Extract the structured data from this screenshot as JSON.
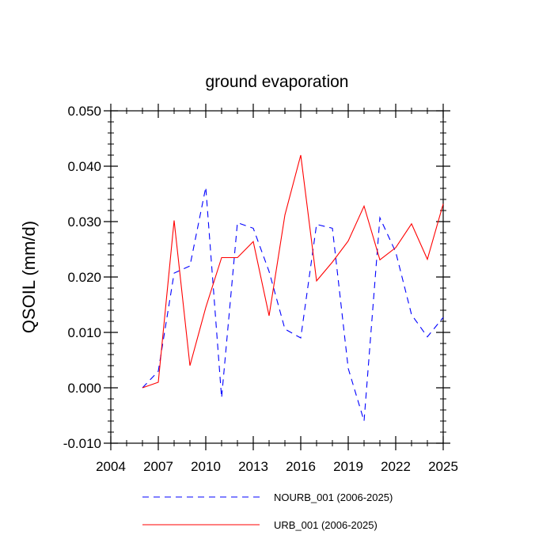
{
  "chart_data": {
    "type": "line",
    "title": "ground evaporation",
    "xlabel": "",
    "ylabel": "QSOIL  (mm/d)",
    "xlim": [
      2004,
      2025
    ],
    "ylim": [
      -0.01,
      0.05
    ],
    "x_ticks": [
      2004,
      2007,
      2010,
      2013,
      2016,
      2019,
      2022,
      2025
    ],
    "x_tick_labels": [
      "2004",
      "2007",
      "2010",
      "2013",
      "2016",
      "2019",
      "2022",
      "2025"
    ],
    "y_ticks": [
      -0.01,
      0.0,
      0.01,
      0.02,
      0.03,
      0.04,
      0.05
    ],
    "y_tick_labels": [
      "-0.010",
      "0.000",
      "0.010",
      "0.020",
      "0.030",
      "0.040",
      "0.050"
    ],
    "grid": false,
    "legend_position": "bottom",
    "x": [
      2006,
      2007,
      2008,
      2009,
      2010,
      2011,
      2012,
      2013,
      2014,
      2015,
      2016,
      2017,
      2018,
      2019,
      2020,
      2021,
      2022,
      2023,
      2024,
      2025
    ],
    "series": [
      {
        "name": "NOURB_001 (2006-2025)",
        "color": "#0000ff",
        "dash": "dashed",
        "values": [
          0.0,
          0.003,
          0.0207,
          0.022,
          0.0362,
          -0.0018,
          0.0298,
          0.0288,
          0.021,
          0.0106,
          0.009,
          0.0295,
          0.0288,
          0.0035,
          -0.006,
          0.0307,
          0.0245,
          0.0132,
          0.0092,
          0.0127
        ]
      },
      {
        "name": "URB_001 (2006-2025)",
        "color": "#ff0000",
        "dash": "solid",
        "values": [
          0.0,
          0.001,
          0.0302,
          0.004,
          0.0145,
          0.0235,
          0.0235,
          0.0264,
          0.013,
          0.0312,
          0.042,
          0.0193,
          0.0227,
          0.0265,
          0.0328,
          0.0231,
          0.0253,
          0.0296,
          0.0232,
          0.0332
        ]
      }
    ]
  }
}
